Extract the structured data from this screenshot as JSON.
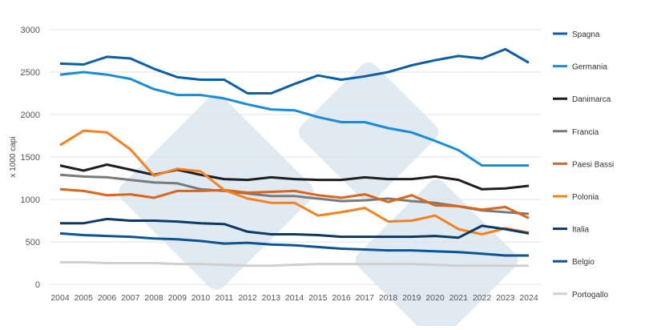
{
  "chart_data": {
    "type": "line",
    "title": "",
    "xlabel": "",
    "ylabel": "x 1000 capi",
    "ylim": [
      0,
      3000
    ],
    "yticks": [
      0,
      500,
      1000,
      1500,
      2000,
      2500,
      3000
    ],
    "grid": true,
    "legend_placement": "right",
    "categories": [
      "2004",
      "2005",
      "2006",
      "2007",
      "2008",
      "2009",
      "2010",
      "2011",
      "2012",
      "2013",
      "2014",
      "2015",
      "2016",
      "2017",
      "2018",
      "2019",
      "2020",
      "2021",
      "2022",
      "2023",
      "2024"
    ],
    "series": [
      {
        "name": "Spagna",
        "color": "#0b5ea8",
        "values": [
          2600,
          2590,
          2680,
          2660,
          2540,
          2440,
          2410,
          2410,
          2250,
          2250,
          2360,
          2460,
          2410,
          2450,
          2500,
          2580,
          2640,
          2690,
          2660,
          2770,
          2610
        ]
      },
      {
        "name": "Germania",
        "color": "#1a8cd8",
        "values": [
          2470,
          2500,
          2470,
          2420,
          2300,
          2230,
          2230,
          2190,
          2120,
          2060,
          2050,
          1970,
          1910,
          1910,
          1840,
          1790,
          1690,
          1580,
          1400,
          1400,
          1400
        ]
      },
      {
        "name": "Danimarca",
        "color": "#1e1e1e",
        "values": [
          1400,
          1340,
          1410,
          1350,
          1290,
          1350,
          1290,
          1240,
          1230,
          1260,
          1240,
          1230,
          1230,
          1260,
          1240,
          1240,
          1270,
          1230,
          1120,
          1130,
          1160
        ]
      },
      {
        "name": "Francia",
        "color": "#7a7a7a",
        "values": [
          1290,
          1270,
          1260,
          1230,
          1200,
          1190,
          1120,
          1100,
          1070,
          1040,
          1040,
          1010,
          980,
          990,
          1010,
          980,
          960,
          920,
          870,
          850,
          830
        ]
      },
      {
        "name": "Paesi Bassi",
        "color": "#d9661a",
        "values": [
          1120,
          1100,
          1050,
          1060,
          1020,
          1100,
          1100,
          1110,
          1080,
          1090,
          1100,
          1050,
          1020,
          1060,
          970,
          1050,
          930,
          920,
          880,
          910,
          780
        ]
      },
      {
        "name": "Polonia",
        "color": "#f5821f",
        "values": [
          1640,
          1810,
          1790,
          1590,
          1280,
          1360,
          1330,
          1110,
          1010,
          960,
          960,
          810,
          850,
          900,
          740,
          750,
          810,
          650,
          590,
          660,
          610
        ]
      },
      {
        "name": "Italia",
        "color": "#0c3a66",
        "values": [
          720,
          720,
          770,
          750,
          750,
          740,
          720,
          710,
          620,
          590,
          590,
          580,
          560,
          560,
          560,
          560,
          570,
          550,
          690,
          650,
          600
        ]
      },
      {
        "name": "Belgio",
        "color": "#0d5496",
        "values": [
          600,
          580,
          570,
          560,
          540,
          530,
          510,
          480,
          490,
          470,
          460,
          440,
          420,
          410,
          400,
          400,
          390,
          380,
          360,
          340,
          340
        ]
      },
      {
        "name": "Portogallo",
        "color": "#d0d0d0",
        "values": [
          260,
          260,
          250,
          250,
          250,
          240,
          240,
          230,
          220,
          220,
          230,
          240,
          240,
          240,
          240,
          240,
          230,
          220,
          220,
          220,
          220
        ]
      }
    ]
  }
}
